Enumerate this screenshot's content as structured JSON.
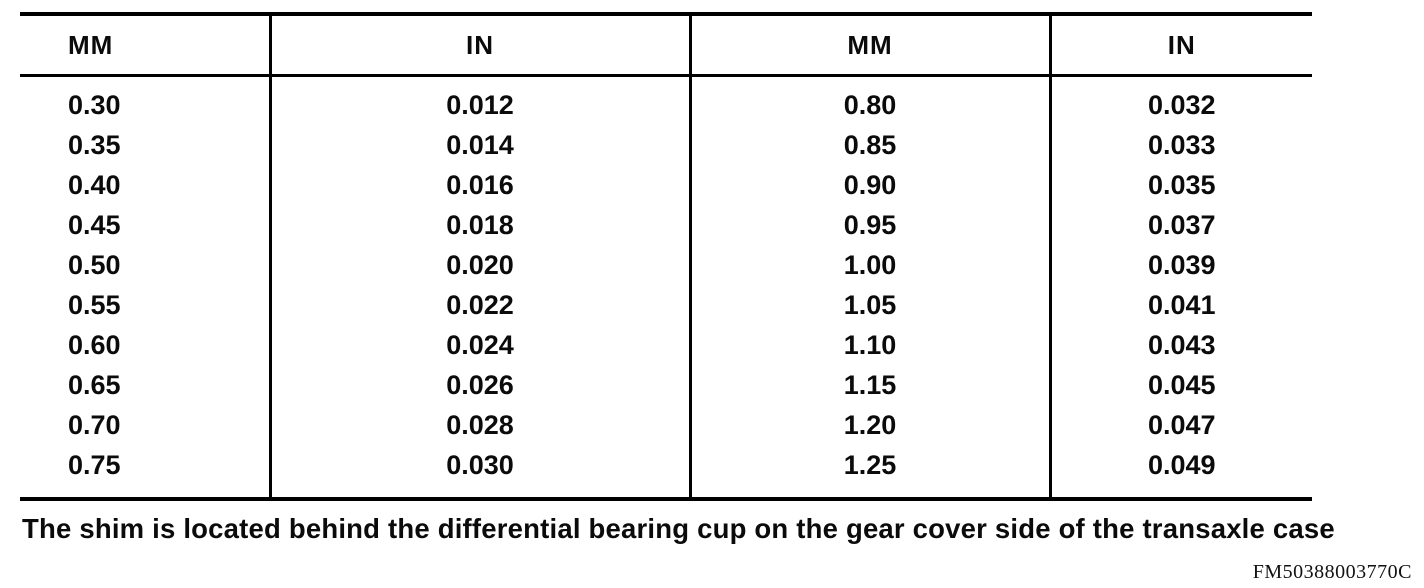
{
  "table": {
    "headers": [
      "MM",
      "IN",
      "MM",
      "IN"
    ],
    "rows": [
      [
        "0.30",
        "0.012",
        "0.80",
        "0.032"
      ],
      [
        "0.35",
        "0.014",
        "0.85",
        "0.033"
      ],
      [
        "0.40",
        "0.016",
        "0.90",
        "0.035"
      ],
      [
        "0.45",
        "0.018",
        "0.95",
        "0.037"
      ],
      [
        "0.50",
        "0.020",
        "1.00",
        "0.039"
      ],
      [
        "0.55",
        "0.022",
        "1.05",
        "0.041"
      ],
      [
        "0.60",
        "0.024",
        "1.10",
        "0.043"
      ],
      [
        "0.65",
        "0.026",
        "1.15",
        "0.045"
      ],
      [
        "0.70",
        "0.028",
        "1.20",
        "0.047"
      ],
      [
        "0.75",
        "0.030",
        "1.25",
        "0.049"
      ]
    ]
  },
  "caption": "The shim is located behind the differential bearing cup on the gear cover side of the transaxle case",
  "figure_code": "FM50388003770C"
}
